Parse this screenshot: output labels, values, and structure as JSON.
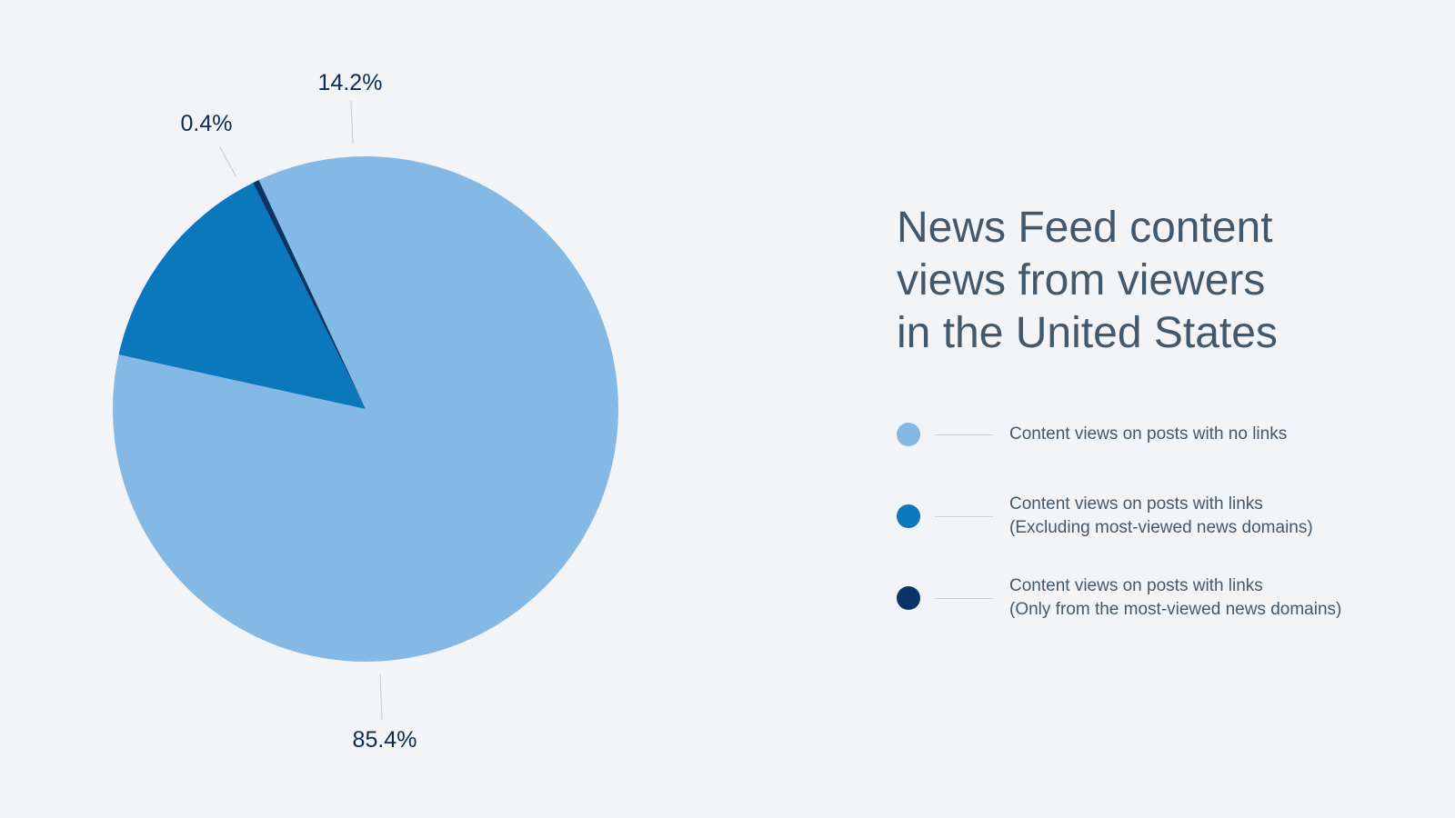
{
  "chart_data": {
    "type": "pie",
    "title_lines": [
      "News Feed content",
      "views from viewers",
      "in the United States"
    ],
    "slices": [
      {
        "label": "Content views on posts with no links",
        "value": 85.4,
        "value_label": "85.4%",
        "color": "#83b9e4"
      },
      {
        "label": "Content views on posts with links (Excluding most-viewed news domains)",
        "value": 14.2,
        "value_label": "14.2%",
        "color": "#0b78bb"
      },
      {
        "label": "Content views on posts with links (Only from the most-viewed news domains)",
        "value": 0.4,
        "value_label": "0.4%",
        "color": "#0a3366"
      }
    ],
    "legend_position": "right"
  },
  "legend": [
    {
      "lines": [
        "Content views on posts with no links"
      ],
      "color": "#83b9e4"
    },
    {
      "lines": [
        "Content views on posts with links",
        "(Excluding most-viewed news domains)"
      ],
      "color": "#0b78bb"
    },
    {
      "lines": [
        "Content views on posts with links",
        "(Only from the most-viewed news domains)"
      ],
      "color": "#0a3366"
    }
  ],
  "colors": {
    "background": "#f2f4f8",
    "text": "#44586b",
    "label_text": "#0d2b52",
    "leader_line": "#c9ced6"
  }
}
